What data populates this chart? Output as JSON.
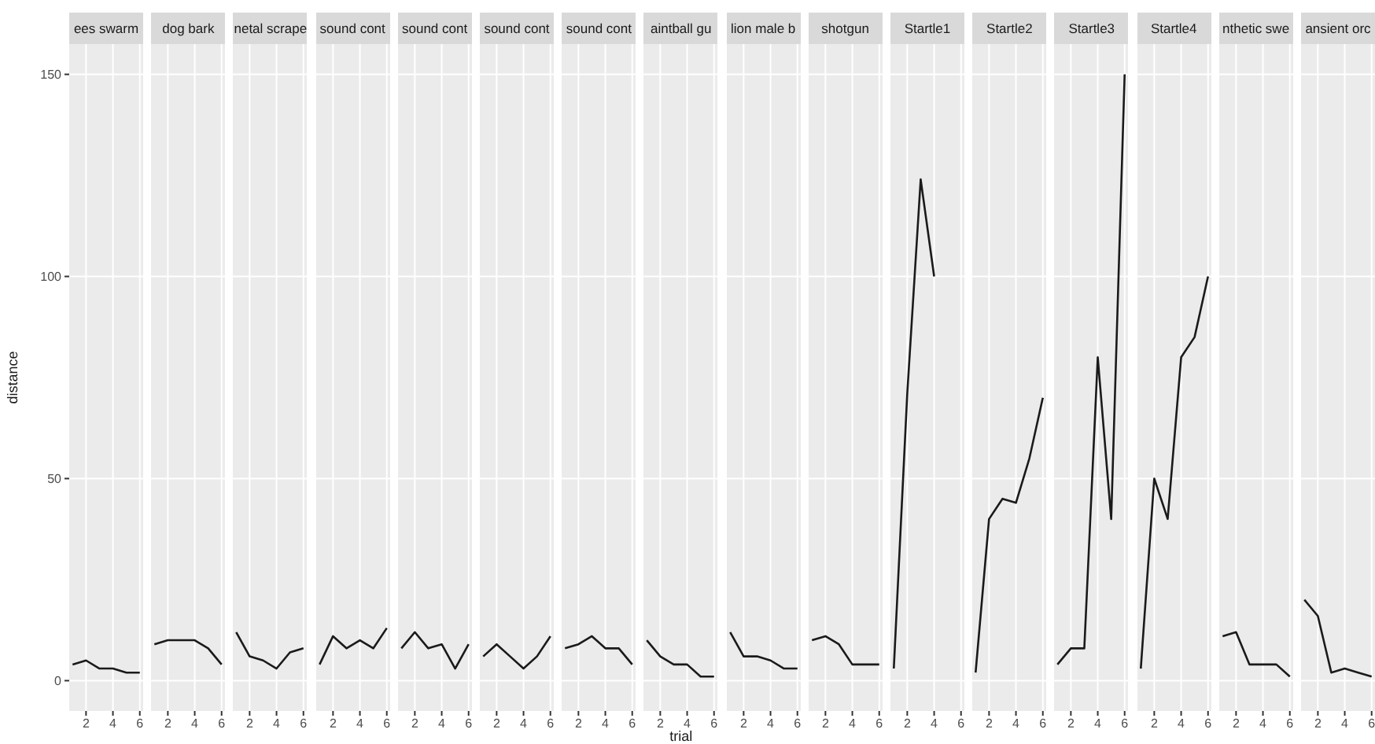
{
  "chart_data": [
    {
      "type": "line",
      "title": "ees swarm",
      "ylabel": "distance",
      "x": [
        1,
        2,
        3,
        4,
        5,
        6
      ],
      "values": [
        4,
        5,
        3,
        3,
        2,
        2
      ],
      "color": "#1a1a1a",
      "xlim": [
        0.75,
        6.25
      ],
      "xticks": [
        2,
        4,
        6
      ],
      "ylim": [
        -7.5,
        157.5
      ],
      "yticks": [
        0,
        50,
        100,
        150
      ],
      "grid": true
    },
    {
      "type": "line",
      "title": "dog bark",
      "x": [
        1,
        2,
        3,
        4,
        5,
        6
      ],
      "values": [
        9,
        10,
        10,
        10,
        8,
        4
      ],
      "color": "#1a1a1a",
      "xlim": [
        0.75,
        6.25
      ],
      "xticks": [
        2,
        4,
        6
      ],
      "ylim": [
        -7.5,
        157.5
      ],
      "yticks": [
        0,
        50,
        100,
        150
      ],
      "grid": true,
      "tick_labels": "x"
    },
    {
      "type": "line",
      "title": "netal scrape",
      "x": [
        1,
        2,
        3,
        4,
        5,
        6
      ],
      "values": [
        12,
        6,
        5,
        3,
        7,
        8
      ],
      "color": "#1a1a1a",
      "xlim": [
        0.75,
        6.25
      ],
      "xticks": [
        2,
        4,
        6
      ],
      "ylim": [
        -7.5,
        157.5
      ],
      "yticks": [
        0,
        50,
        100,
        150
      ],
      "grid": true,
      "tick_labels": "x"
    },
    {
      "type": "line",
      "title": "sound cont",
      "x": [
        1,
        2,
        3,
        4,
        5,
        6
      ],
      "values": [
        4,
        11,
        8,
        10,
        8,
        13
      ],
      "color": "#1a1a1a",
      "xlim": [
        0.75,
        6.25
      ],
      "xticks": [
        2,
        4,
        6
      ],
      "ylim": [
        -7.5,
        157.5
      ],
      "yticks": [
        0,
        50,
        100,
        150
      ],
      "grid": true,
      "tick_labels": "x"
    },
    {
      "type": "line",
      "title": "sound cont",
      "x": [
        1,
        2,
        3,
        4,
        5,
        6
      ],
      "values": [
        8,
        12,
        8,
        9,
        3,
        9
      ],
      "color": "#1a1a1a",
      "xlim": [
        0.75,
        6.25
      ],
      "xticks": [
        2,
        4,
        6
      ],
      "ylim": [
        -7.5,
        157.5
      ],
      "yticks": [
        0,
        50,
        100,
        150
      ],
      "grid": true,
      "tick_labels": "x"
    },
    {
      "type": "line",
      "title": "sound cont",
      "x": [
        1,
        2,
        3,
        4,
        5,
        6
      ],
      "values": [
        6,
        9,
        6,
        3,
        6,
        11
      ],
      "color": "#1a1a1a",
      "xlim": [
        0.75,
        6.25
      ],
      "xticks": [
        2,
        4,
        6
      ],
      "ylim": [
        -7.5,
        157.5
      ],
      "yticks": [
        0,
        50,
        100,
        150
      ],
      "grid": true,
      "tick_labels": "x"
    },
    {
      "type": "line",
      "title": "sound cont",
      "x": [
        1,
        2,
        3,
        4,
        5,
        6
      ],
      "values": [
        8,
        9,
        11,
        8,
        8,
        4
      ],
      "color": "#1a1a1a",
      "xlim": [
        0.75,
        6.25
      ],
      "xticks": [
        2,
        4,
        6
      ],
      "ylim": [
        -7.5,
        157.5
      ],
      "yticks": [
        0,
        50,
        100,
        150
      ],
      "grid": true,
      "tick_labels": "x"
    },
    {
      "type": "line",
      "title": "aintball gu",
      "xlabel": "trial",
      "x": [
        1,
        2,
        3,
        4,
        5,
        6
      ],
      "values": [
        10,
        6,
        4,
        4,
        1,
        1
      ],
      "color": "#1a1a1a",
      "xlim": [
        0.75,
        6.25
      ],
      "xticks": [
        2,
        4,
        6
      ],
      "ylim": [
        -7.5,
        157.5
      ],
      "yticks": [
        0,
        50,
        100,
        150
      ],
      "grid": true,
      "tick_labels": "x"
    },
    {
      "type": "line",
      "title": "lion male b",
      "x": [
        1,
        2,
        3,
        4,
        5,
        6
      ],
      "values": [
        12,
        6,
        6,
        5,
        3,
        3
      ],
      "color": "#1a1a1a",
      "xlim": [
        0.75,
        6.25
      ],
      "xticks": [
        2,
        4,
        6
      ],
      "ylim": [
        -7.5,
        157.5
      ],
      "yticks": [
        0,
        50,
        100,
        150
      ],
      "grid": true,
      "tick_labels": "x"
    },
    {
      "type": "line",
      "title": "shotgun",
      "x": [
        1,
        2,
        3,
        4,
        5,
        6
      ],
      "values": [
        10,
        11,
        9,
        4,
        4,
        4
      ],
      "color": "#1a1a1a",
      "xlim": [
        0.75,
        6.25
      ],
      "xticks": [
        2,
        4,
        6
      ],
      "ylim": [
        -7.5,
        157.5
      ],
      "yticks": [
        0,
        50,
        100,
        150
      ],
      "grid": true,
      "tick_labels": "x"
    },
    {
      "type": "line",
      "title": "Startle1",
      "x": [
        1,
        2,
        3,
        4
      ],
      "values": [
        3,
        71,
        124,
        100
      ],
      "color": "#1a1a1a",
      "xlim": [
        0.75,
        6.25
      ],
      "xticks": [
        2,
        4,
        6
      ],
      "ylim": [
        -7.5,
        157.5
      ],
      "yticks": [
        0,
        50,
        100,
        150
      ],
      "grid": true,
      "tick_labels": "x"
    },
    {
      "type": "line",
      "title": "Startle2",
      "x": [
        1,
        2,
        3,
        4,
        5,
        6
      ],
      "values": [
        2,
        40,
        45,
        44,
        55,
        70
      ],
      "color": "#1a1a1a",
      "xlim": [
        0.75,
        6.25
      ],
      "xticks": [
        2,
        4,
        6
      ],
      "ylim": [
        -7.5,
        157.5
      ],
      "yticks": [
        0,
        50,
        100,
        150
      ],
      "grid": true,
      "tick_labels": "x"
    },
    {
      "type": "line",
      "title": "Startle3",
      "x": [
        1,
        2,
        3,
        4,
        5,
        6
      ],
      "values": [
        4,
        8,
        8,
        80,
        40,
        150
      ],
      "color": "#1a1a1a",
      "xlim": [
        0.75,
        6.25
      ],
      "xticks": [
        2,
        4,
        6
      ],
      "ylim": [
        -7.5,
        157.5
      ],
      "yticks": [
        0,
        50,
        100,
        150
      ],
      "grid": true,
      "tick_labels": "x"
    },
    {
      "type": "line",
      "title": "Startle4",
      "x": [
        1,
        2,
        3,
        4,
        5,
        6
      ],
      "values": [
        3,
        50,
        40,
        80,
        85,
        100
      ],
      "color": "#1a1a1a",
      "xlim": [
        0.75,
        6.25
      ],
      "xticks": [
        2,
        4,
        6
      ],
      "ylim": [
        -7.5,
        157.5
      ],
      "yticks": [
        0,
        50,
        100,
        150
      ],
      "grid": true,
      "tick_labels": "x"
    },
    {
      "type": "line",
      "title": "nthetic swe",
      "x": [
        1,
        2,
        3,
        4,
        5,
        6
      ],
      "values": [
        11,
        12,
        4,
        4,
        4,
        1
      ],
      "color": "#1a1a1a",
      "xlim": [
        0.75,
        6.25
      ],
      "xticks": [
        2,
        4,
        6
      ],
      "ylim": [
        -7.5,
        157.5
      ],
      "yticks": [
        0,
        50,
        100,
        150
      ],
      "grid": true,
      "tick_labels": "x"
    },
    {
      "type": "line",
      "title": "ansient orc",
      "x": [
        1,
        2,
        3,
        4,
        5,
        6
      ],
      "values": [
        20,
        16,
        2,
        3,
        2,
        1
      ],
      "color": "#1a1a1a",
      "xlim": [
        0.75,
        6.25
      ],
      "xticks": [
        2,
        4,
        6
      ],
      "ylim": [
        -7.5,
        157.5
      ],
      "yticks": [
        0,
        50,
        100,
        150
      ],
      "grid": true,
      "tick_labels": "x"
    }
  ]
}
